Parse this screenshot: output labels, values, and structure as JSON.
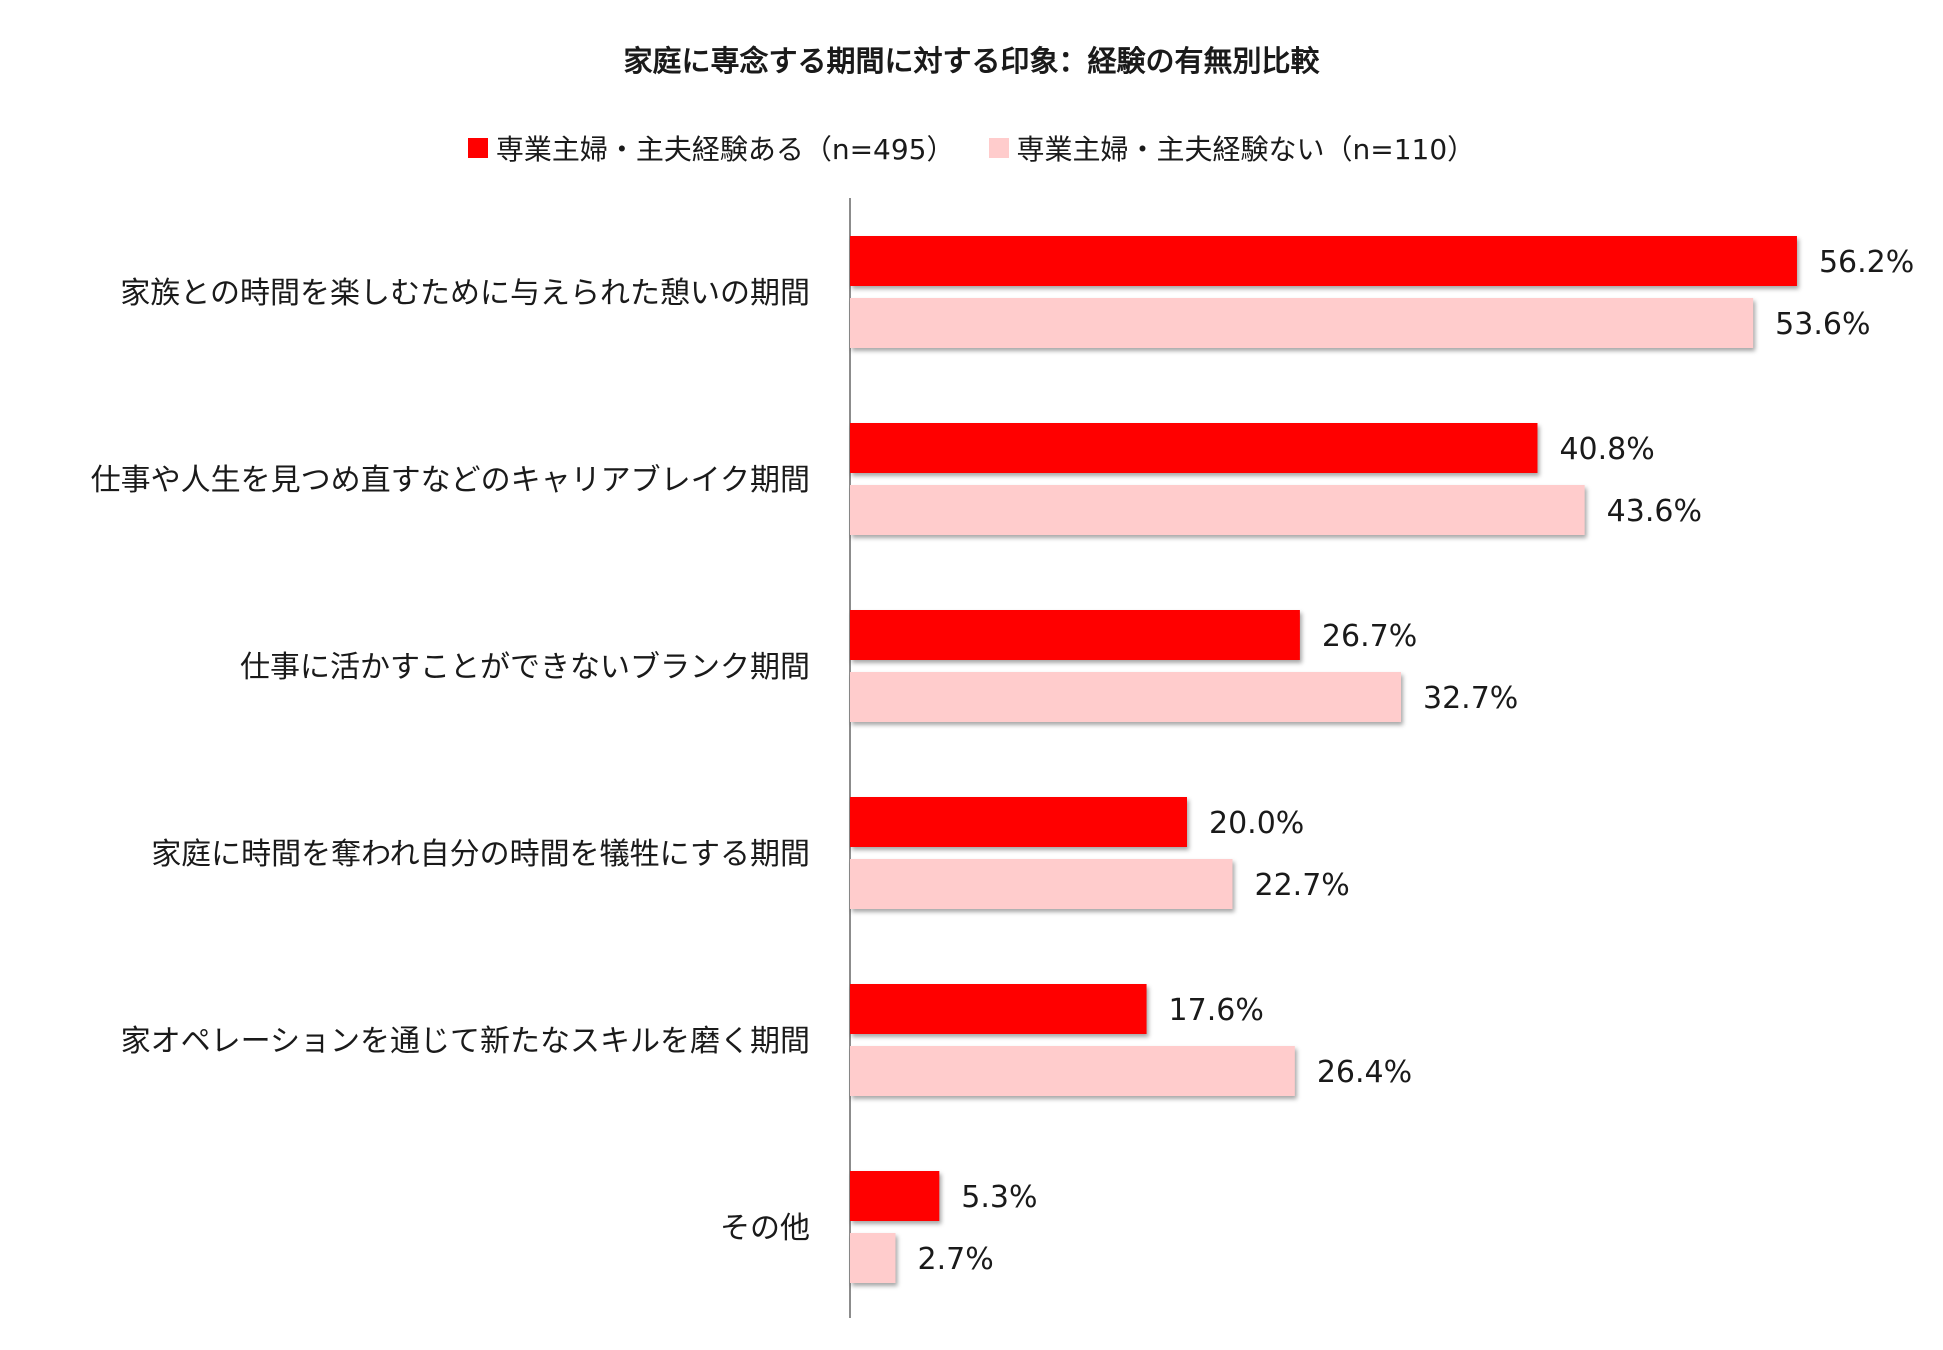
{
  "chart_data": {
    "type": "bar",
    "orientation": "horizontal",
    "title": "家庭に専念する期間に対する印象：経験の有無別比較",
    "categories": [
      "家族との時間を楽しむために与えられた憩いの期間",
      "仕事や人生を見つめ直すなどのキャリアブレイク期間",
      "仕事に活かすことができないブランク期間",
      "家庭に時間を奪われ自分の時間を犠牲にする期間",
      "家オペレーションを通じて新たなスキルを磨く期間",
      "その他"
    ],
    "series": [
      {
        "name": "専業主婦・主夫経験ある（n=495）",
        "color": "#ff0000",
        "values": [
          56.2,
          40.8,
          26.7,
          20.0,
          17.6,
          5.3
        ]
      },
      {
        "name": "専業主婦・主夫経験ない（n=110）",
        "color": "#ffcccc",
        "values": [
          53.6,
          43.6,
          32.7,
          22.7,
          26.4,
          2.7
        ]
      }
    ],
    "value_labels": [
      [
        "56.2%",
        "40.8%",
        "26.7%",
        "20.0%",
        "17.6%",
        "5.3%"
      ],
      [
        "53.6%",
        "43.6%",
        "32.7%",
        "22.7%",
        "26.4%",
        "2.7%"
      ]
    ],
    "xlim": [
      0,
      60
    ],
    "grid": false,
    "legend_position": "top-center"
  }
}
